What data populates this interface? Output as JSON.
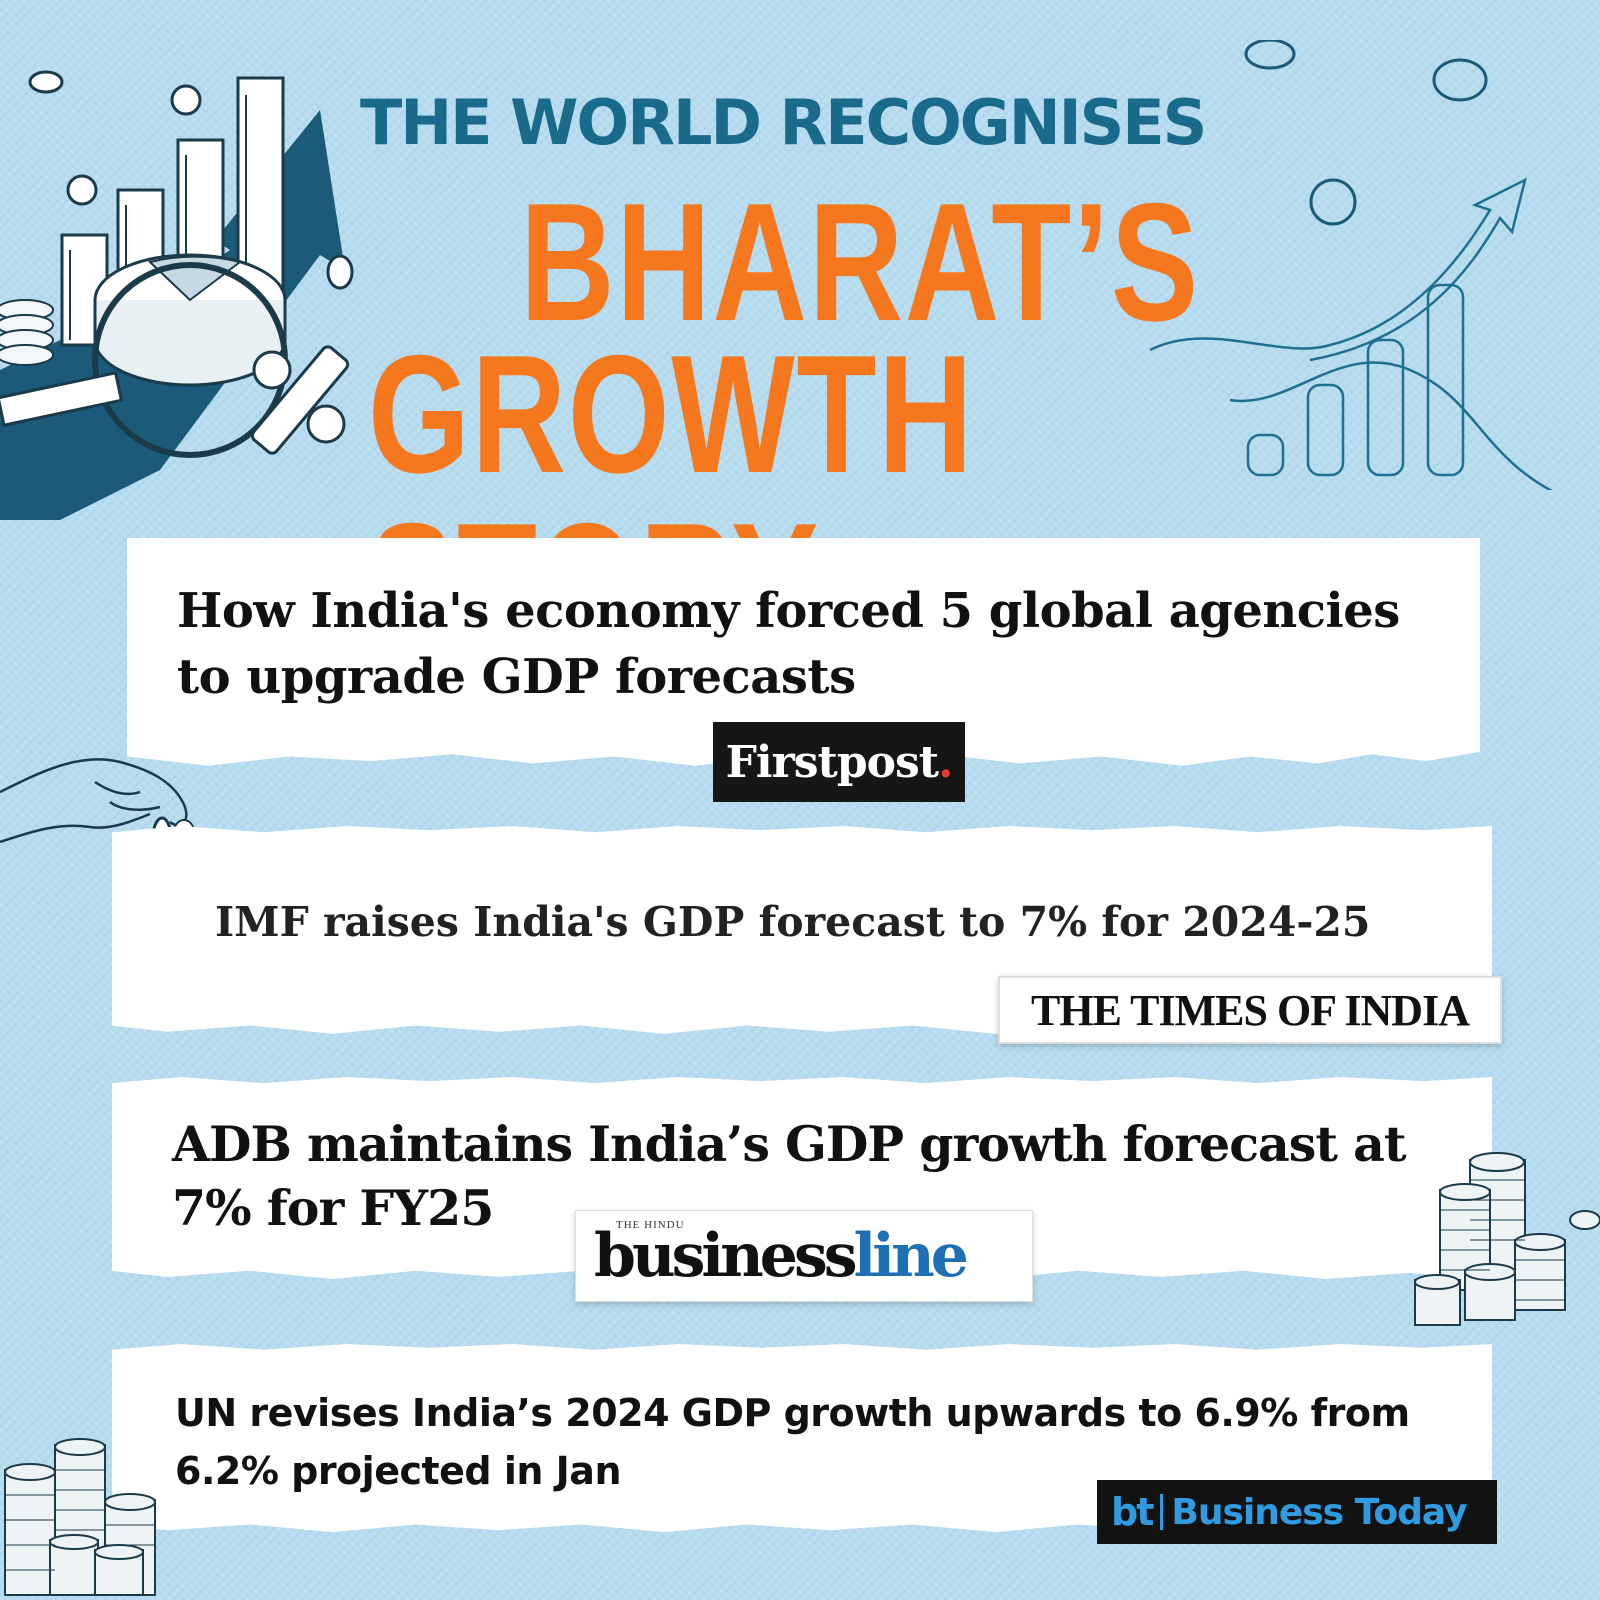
{
  "header": {
    "kicker": "THE WORLD RECOGNISES",
    "title_line1": "BHARAT’S",
    "title_line2": "GROWTH STORY"
  },
  "headlines": [
    {
      "text": "How India's economy forced 5 global agencies to upgrade GDP forecasts",
      "source_name": "Firstpost",
      "source_mark": "."
    },
    {
      "text": "IMF raises India's GDP forecast to 7% for 2024-25",
      "source_name": "THE TIMES OF INDIA"
    },
    {
      "text": "ADB maintains India’s GDP growth forecast at 7% for FY25",
      "source_prefix": "THE HINDU",
      "source_name_part1": "business",
      "source_name_part2": "line"
    },
    {
      "text": "UN revises India’s 2024 GDP growth upwards to 6.9% from 6.2% projected in Jan",
      "source_short": "bt",
      "source_name": "Business Today"
    }
  ],
  "colors": {
    "background": "#b7dcef",
    "kicker": "#1a6a8c",
    "title": "#f5781e",
    "decor_dark": "#1b5a78",
    "firstpost_dot": "#e63a2e",
    "bt_blue": "#2f9be0"
  },
  "icons": [
    "bar-chart-arrow-illustration",
    "magnifier-icon",
    "percent-icon",
    "coin-icon",
    "coin-stack-icon",
    "growth-line-chart-icon",
    "hand-holding-coin-icon"
  ]
}
